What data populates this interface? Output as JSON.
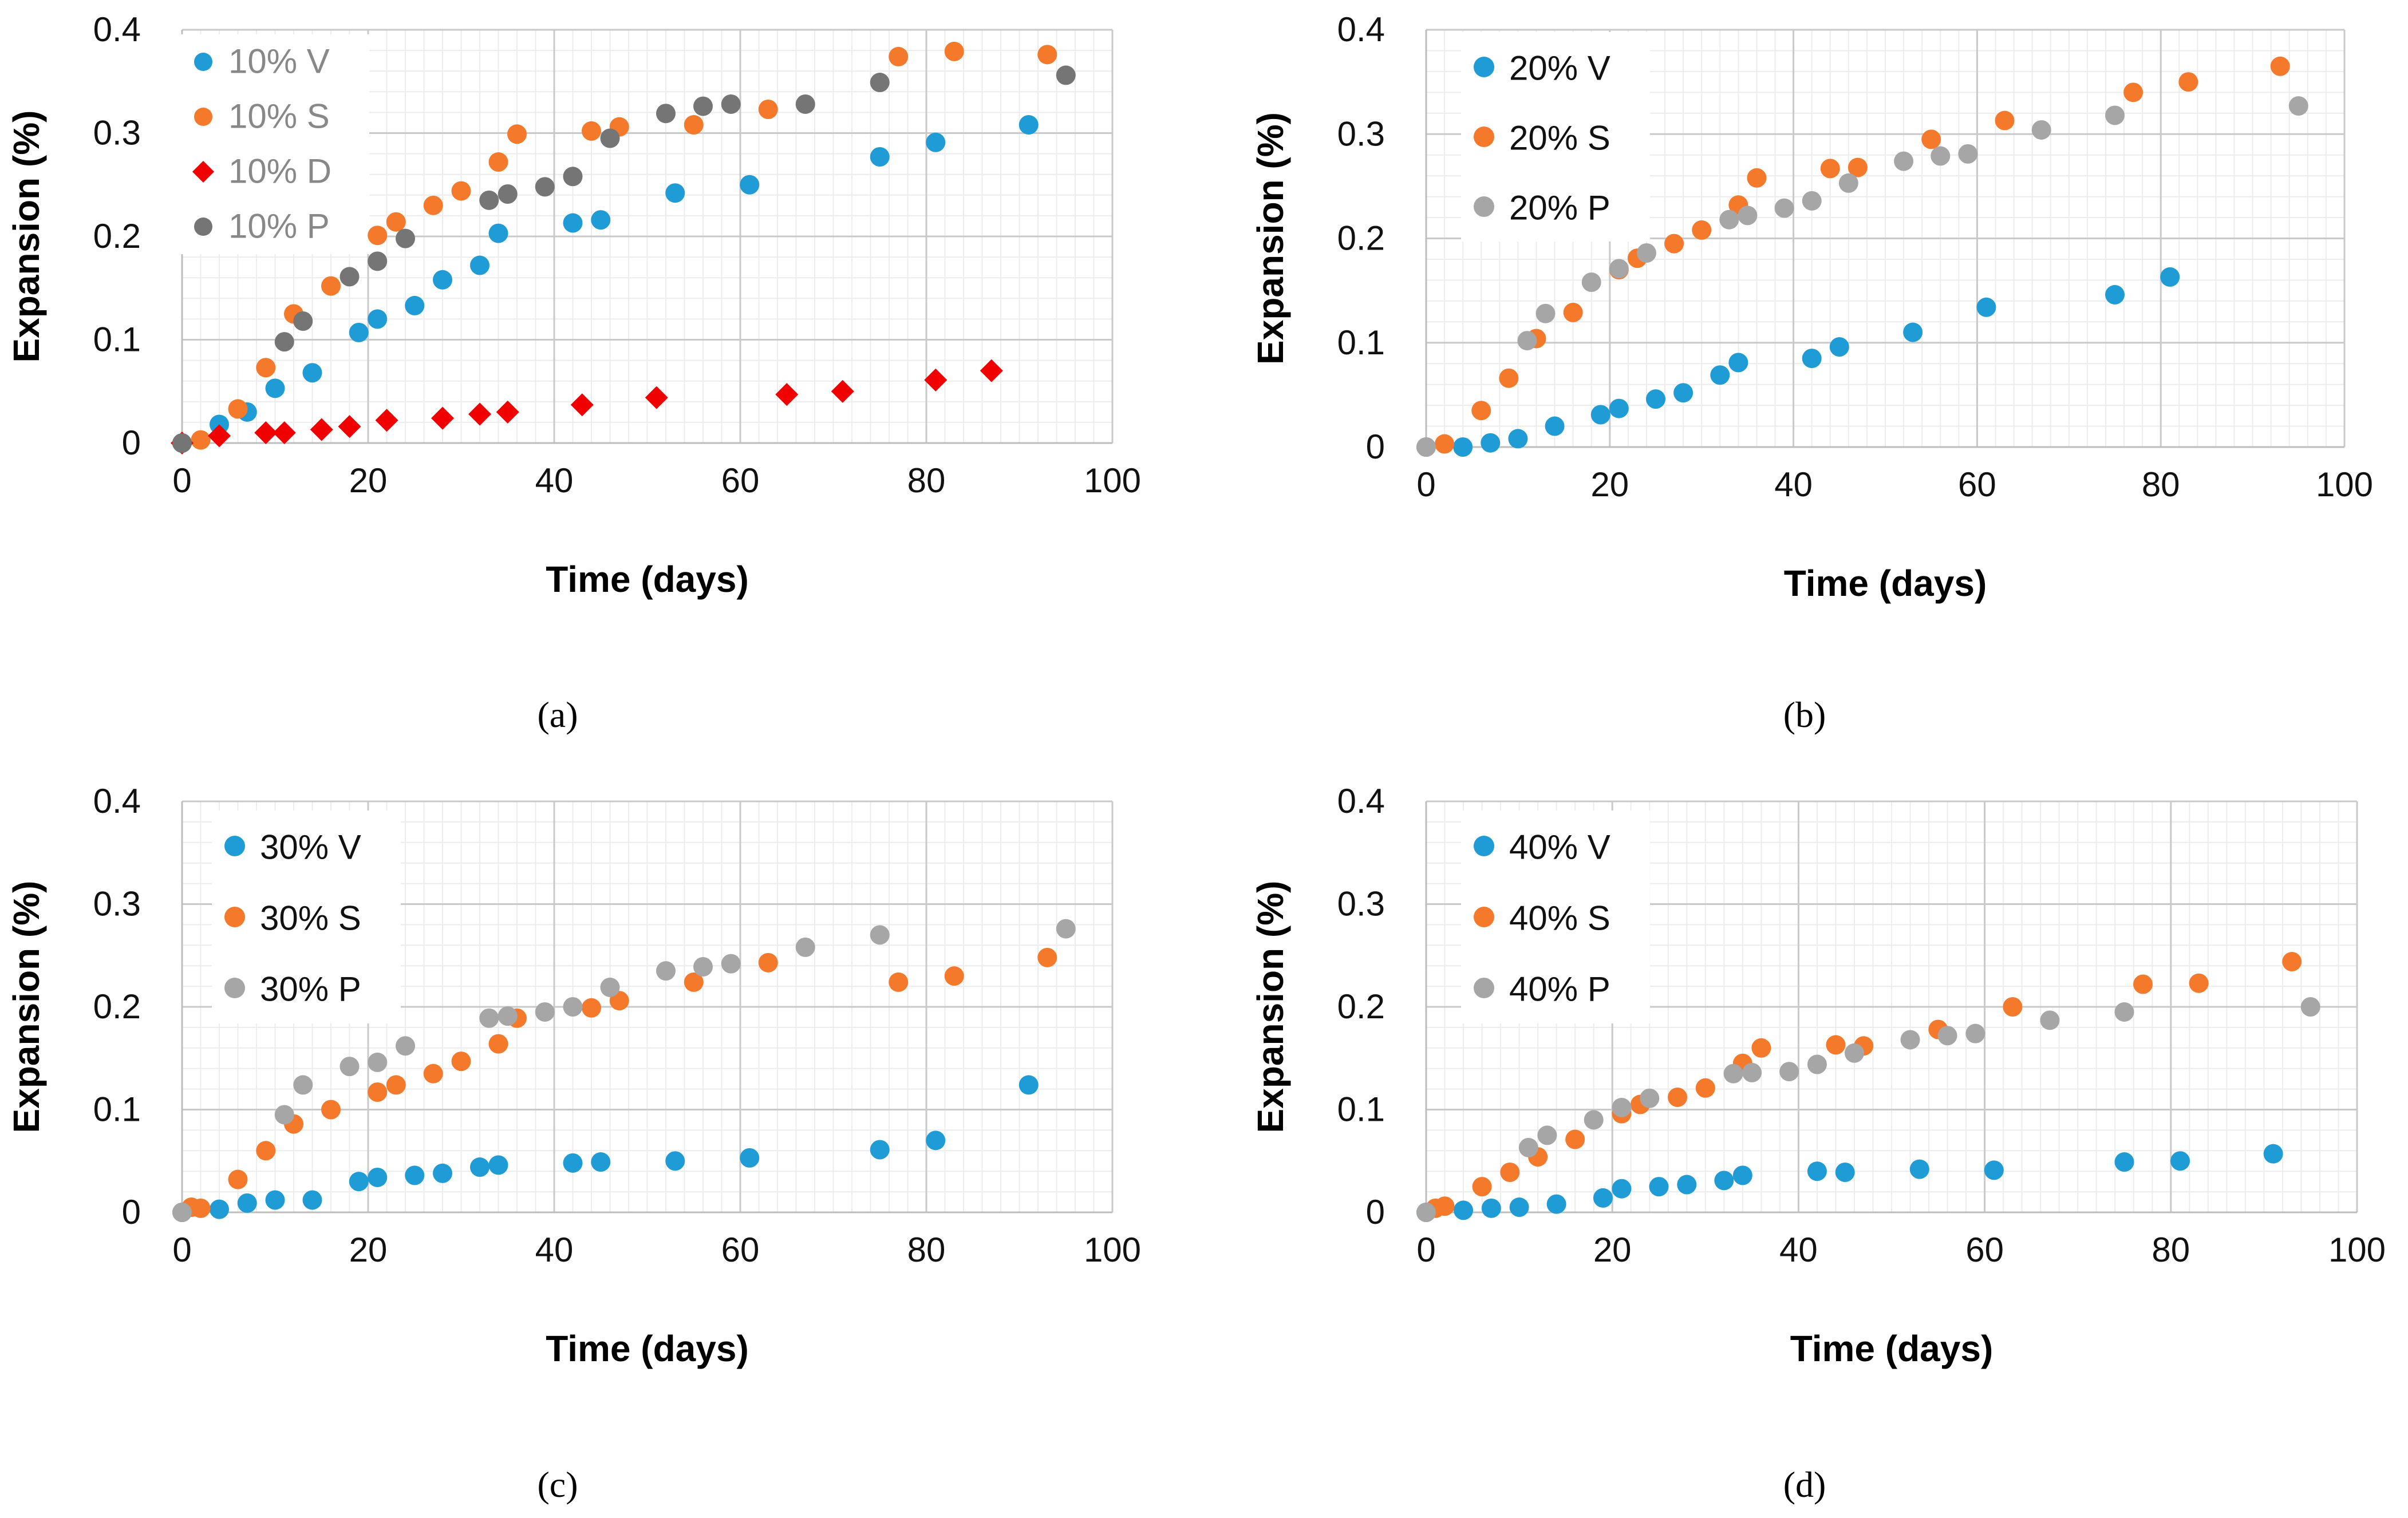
{
  "chart_data": [
    {
      "type": "scatter",
      "panel": "a",
      "caption": "(a)",
      "xlabel": "Time (days)",
      "ylabel": "Expansion (%)",
      "xlim": [
        0,
        100
      ],
      "ylim": [
        0,
        0.4
      ],
      "xticks": [
        "0",
        "20",
        "40",
        "60",
        "80",
        "100"
      ],
      "yticks": [
        "0",
        "0.1",
        "0.2",
        "0.3",
        "0.4"
      ],
      "legend_color": "#888888",
      "series": [
        {
          "name": "10% V",
          "color": "#1f9bd6",
          "marker": "circle",
          "x": [
            0,
            4,
            7,
            10,
            14,
            19,
            21,
            25,
            28,
            32,
            34,
            42,
            45,
            53,
            61,
            75,
            81,
            91
          ],
          "y": [
            0,
            0.018,
            0.03,
            0.053,
            0.068,
            0.107,
            0.12,
            0.133,
            0.158,
            0.172,
            0.203,
            0.213,
            0.216,
            0.242,
            0.25,
            0.277,
            0.291,
            0.308
          ]
        },
        {
          "name": "10% S",
          "color": "#f5792a",
          "marker": "circle",
          "x": [
            2,
            6,
            9,
            12,
            16,
            21,
            23,
            27,
            30,
            34,
            36,
            44,
            47,
            55,
            63,
            77,
            83,
            93
          ],
          "y": [
            0.003,
            0.033,
            0.073,
            0.125,
            0.152,
            0.201,
            0.214,
            0.23,
            0.244,
            0.272,
            0.299,
            0.302,
            0.306,
            0.308,
            0.323,
            0.374,
            0.379,
            0.376
          ]
        },
        {
          "name": "10% D",
          "color": "#f00000",
          "marker": "diamond",
          "x": [
            0,
            4,
            9,
            11,
            15,
            18,
            22,
            28,
            32,
            35,
            43,
            51,
            65,
            71,
            81,
            87
          ],
          "y": [
            0,
            0.007,
            0.01,
            0.01,
            0.013,
            0.016,
            0.022,
            0.024,
            0.028,
            0.03,
            0.037,
            0.044,
            0.047,
            0.05,
            0.061,
            0.07
          ]
        },
        {
          "name": "10% P",
          "color": "#757575",
          "marker": "circle",
          "x": [
            0,
            11,
            13,
            18,
            21,
            24,
            33,
            35,
            39,
            42,
            46,
            52,
            56,
            59,
            67,
            75,
            95
          ],
          "y": [
            0,
            0.098,
            0.118,
            0.161,
            0.176,
            0.198,
            0.235,
            0.241,
            0.248,
            0.258,
            0.295,
            0.319,
            0.326,
            0.328,
            0.328,
            0.349,
            0.356
          ]
        }
      ]
    },
    {
      "type": "scatter",
      "panel": "b",
      "caption": "(b)",
      "xlabel": "Time (days)",
      "ylabel": "Expansion (%)",
      "xlim": [
        0,
        100
      ],
      "ylim": [
        0,
        0.4
      ],
      "xticks": [
        "0",
        "20",
        "40",
        "60",
        "80",
        "100"
      ],
      "yticks": [
        "0",
        "0.1",
        "0.2",
        "0.3",
        "0.4"
      ],
      "legend_color": "#111111",
      "series": [
        {
          "name": "20% V",
          "color": "#1f9bd6",
          "marker": "circle",
          "x": [
            0,
            4,
            7,
            10,
            14,
            19,
            21,
            25,
            28,
            32,
            34,
            42,
            45,
            53,
            61,
            75,
            81
          ],
          "y": [
            0,
            0,
            0.004,
            0.008,
            0.02,
            0.031,
            0.037,
            0.046,
            0.052,
            0.069,
            0.081,
            0.085,
            0.096,
            0.11,
            0.134,
            0.146,
            0.163
          ]
        },
        {
          "name": "20% S",
          "color": "#f5792a",
          "marker": "circle",
          "x": [
            2,
            6,
            9,
            12,
            16,
            21,
            23,
            27,
            30,
            34,
            36,
            44,
            47,
            55,
            63,
            77,
            83,
            93
          ],
          "y": [
            0.003,
            0.035,
            0.066,
            0.104,
            0.129,
            0.17,
            0.181,
            0.195,
            0.208,
            0.232,
            0.258,
            0.267,
            0.268,
            0.295,
            0.313,
            0.34,
            0.35,
            0.365
          ]
        },
        {
          "name": "20% P",
          "color": "#a6a6a6",
          "marker": "circle",
          "x": [
            0,
            11,
            13,
            18,
            21,
            24,
            33,
            35,
            39,
            42,
            46,
            52,
            56,
            59,
            67,
            75,
            95
          ],
          "y": [
            0,
            0.102,
            0.128,
            0.158,
            0.171,
            0.186,
            0.218,
            0.222,
            0.229,
            0.236,
            0.253,
            0.274,
            0.279,
            0.281,
            0.304,
            0.318,
            0.327
          ]
        }
      ]
    },
    {
      "type": "scatter",
      "panel": "c",
      "caption": "(c)",
      "xlabel": "Time (days)",
      "ylabel": "Expansion (%)",
      "xlim": [
        0,
        100
      ],
      "ylim": [
        0,
        0.4
      ],
      "xticks": [
        "0",
        "20",
        "40",
        "60",
        "80",
        "100"
      ],
      "yticks": [
        "0",
        "0.1",
        "0.2",
        "0.3",
        "0.4"
      ],
      "legend_color": "#111111",
      "series": [
        {
          "name": "30% V",
          "color": "#1f9bd6",
          "marker": "circle",
          "x": [
            0,
            4,
            7,
            10,
            14,
            19,
            21,
            25,
            28,
            32,
            34,
            42,
            45,
            53,
            61,
            75,
            81,
            91
          ],
          "y": [
            0,
            0.003,
            0.009,
            0.012,
            0.012,
            0.03,
            0.034,
            0.036,
            0.038,
            0.044,
            0.046,
            0.048,
            0.049,
            0.05,
            0.053,
            0.061,
            0.07,
            0.124
          ]
        },
        {
          "name": "30% S",
          "color": "#f5792a",
          "marker": "circle",
          "x": [
            1,
            2,
            6,
            9,
            12,
            16,
            21,
            23,
            27,
            30,
            34,
            36,
            44,
            47,
            55,
            63,
            77,
            83,
            93
          ],
          "y": [
            0.005,
            0.004,
            0.032,
            0.06,
            0.086,
            0.1,
            0.117,
            0.124,
            0.135,
            0.147,
            0.164,
            0.189,
            0.199,
            0.206,
            0.224,
            0.243,
            0.224,
            0.23,
            0.248
          ]
        },
        {
          "name": "30% P",
          "color": "#a6a6a6",
          "marker": "circle",
          "x": [
            0,
            11,
            13,
            18,
            21,
            24,
            33,
            35,
            39,
            42,
            46,
            52,
            56,
            59,
            67,
            75,
            95
          ],
          "y": [
            0,
            0.095,
            0.124,
            0.142,
            0.146,
            0.162,
            0.189,
            0.191,
            0.195,
            0.2,
            0.219,
            0.235,
            0.239,
            0.242,
            0.258,
            0.27,
            0.276
          ]
        }
      ]
    },
    {
      "type": "scatter",
      "panel": "d",
      "caption": "(d)",
      "xlabel": "Time (days)",
      "ylabel": "Expansion (%)",
      "xlim": [
        0,
        100
      ],
      "ylim": [
        0,
        0.4
      ],
      "xticks": [
        "0",
        "20",
        "40",
        "60",
        "80",
        "100"
      ],
      "yticks": [
        "0",
        "0.1",
        "0.2",
        "0.3",
        "0.4"
      ],
      "legend_color": "#111111",
      "series": [
        {
          "name": "40% V",
          "color": "#1f9bd6",
          "marker": "circle",
          "x": [
            0,
            4,
            7,
            10,
            14,
            19,
            21,
            25,
            28,
            32,
            34,
            42,
            45,
            53,
            61,
            75,
            81,
            91
          ],
          "y": [
            0,
            0.002,
            0.004,
            0.005,
            0.008,
            0.014,
            0.023,
            0.025,
            0.027,
            0.031,
            0.036,
            0.04,
            0.039,
            0.042,
            0.041,
            0.049,
            0.05,
            0.057
          ]
        },
        {
          "name": "40% S",
          "color": "#f5792a",
          "marker": "circle",
          "x": [
            1,
            2,
            6,
            9,
            12,
            16,
            21,
            23,
            27,
            30,
            34,
            36,
            44,
            47,
            55,
            63,
            77,
            83,
            93
          ],
          "y": [
            0.004,
            0.006,
            0.025,
            0.039,
            0.054,
            0.071,
            0.096,
            0.105,
            0.112,
            0.121,
            0.145,
            0.16,
            0.163,
            0.162,
            0.178,
            0.2,
            0.222,
            0.223,
            0.244
          ]
        },
        {
          "name": "40% P",
          "color": "#a6a6a6",
          "marker": "circle",
          "x": [
            0,
            11,
            13,
            18,
            21,
            24,
            33,
            35,
            39,
            42,
            46,
            52,
            56,
            59,
            67,
            75,
            95
          ],
          "y": [
            0,
            0.063,
            0.075,
            0.09,
            0.102,
            0.111,
            0.135,
            0.136,
            0.137,
            0.144,
            0.155,
            0.168,
            0.172,
            0.174,
            0.187,
            0.195,
            0.2
          ]
        }
      ]
    }
  ]
}
